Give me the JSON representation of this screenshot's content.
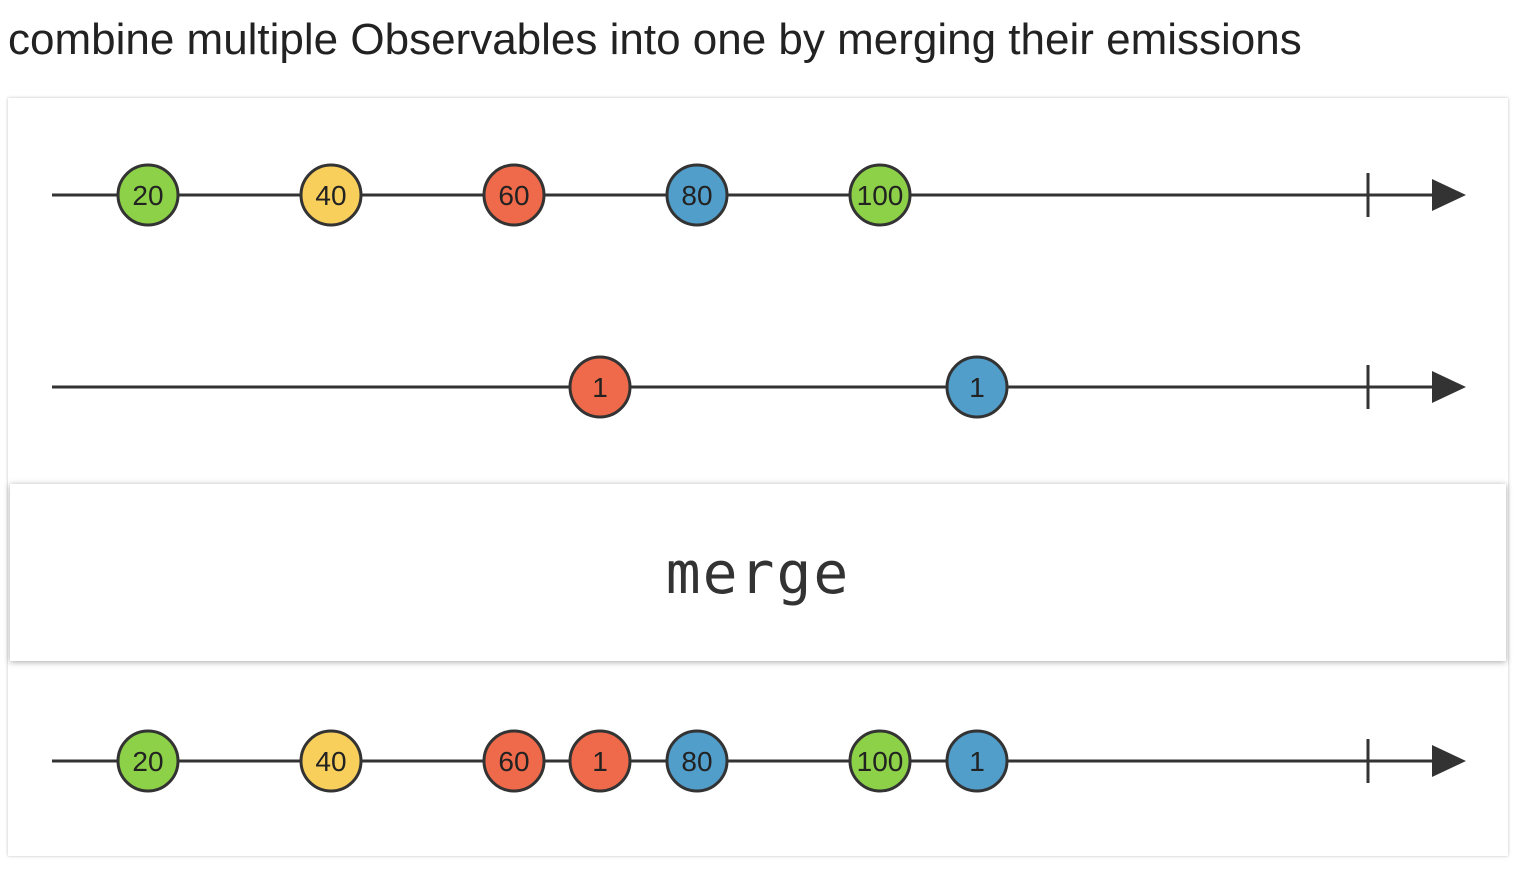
{
  "title": "combine multiple Observables into one by merging their emissions",
  "operator": "merge",
  "colors": {
    "green": "#8cd147",
    "yellow": "#f9cf5b",
    "red": "#ee6a4a",
    "blue": "#519ecb",
    "stroke": "#333333"
  },
  "timelines": [
    {
      "name": "input-1",
      "marbles": [
        {
          "label": "20",
          "color": "green",
          "t": 148
        },
        {
          "label": "40",
          "color": "yellow",
          "t": 331
        },
        {
          "label": "60",
          "color": "red",
          "t": 514
        },
        {
          "label": "80",
          "color": "blue",
          "t": 697
        },
        {
          "label": "100",
          "color": "green",
          "t": 880
        }
      ]
    },
    {
      "name": "input-2",
      "marbles": [
        {
          "label": "1",
          "color": "red",
          "t": 600
        },
        {
          "label": "1",
          "color": "blue",
          "t": 977
        }
      ]
    },
    {
      "name": "output",
      "marbles": [
        {
          "label": "20",
          "color": "green",
          "t": 148
        },
        {
          "label": "40",
          "color": "yellow",
          "t": 331
        },
        {
          "label": "60",
          "color": "red",
          "t": 514
        },
        {
          "label": "1",
          "color": "red",
          "t": 600
        },
        {
          "label": "80",
          "color": "blue",
          "t": 697
        },
        {
          "label": "100",
          "color": "green",
          "t": 880
        },
        {
          "label": "1",
          "color": "blue",
          "t": 977
        }
      ]
    }
  ]
}
